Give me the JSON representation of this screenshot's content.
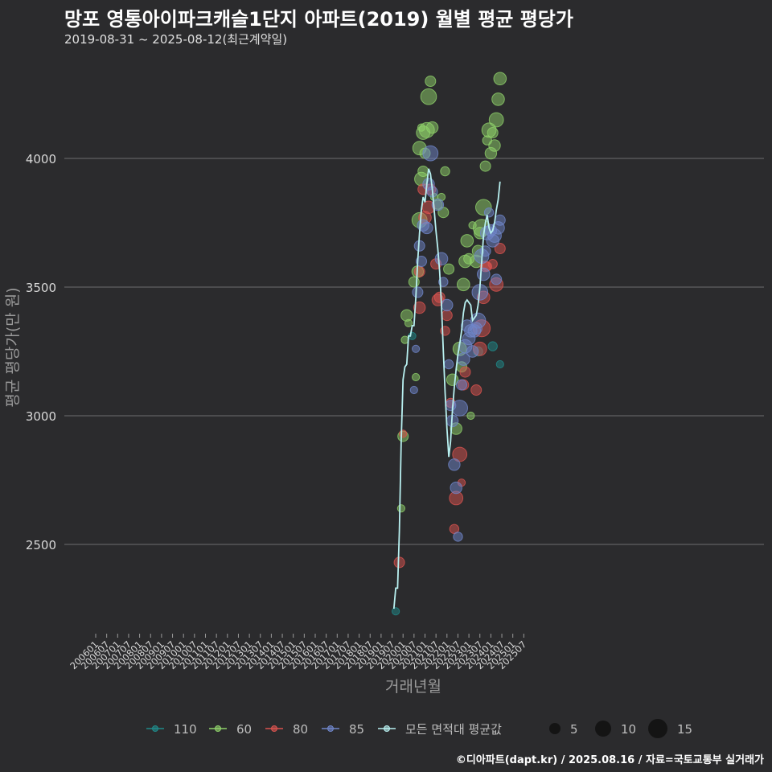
{
  "title": "망포 영통아이파크캐슬1단지 아파트(2019) 월별 평균 평당가",
  "subtitle": "2019-08-31 ~ 2025-08-12(최근계약일)",
  "source": "©디아파트(dapt.kr) / 2025.08.16 / 자료=국토교통부 실거래가",
  "colors": {
    "background": "#2b2b2d",
    "grid": "#6e6e6e",
    "110": "#1f8a8a",
    "60": "#8fd16a",
    "80": "#d9534f",
    "85": "#6f86c9",
    "avg": "#b8f0f0"
  },
  "chart_data": {
    "type": "scatter",
    "xlabel": "거래년월",
    "ylabel": "평균 평당가(만 원)",
    "ylim": [
      2150,
      4380
    ],
    "yticks": [
      2500,
      3000,
      3500,
      4000
    ],
    "x_tick_labels": [
      "200601",
      "200607",
      "200701",
      "200707",
      "200801",
      "200807",
      "200901",
      "200907",
      "201001",
      "201007",
      "201101",
      "201107",
      "201201",
      "201207",
      "201301",
      "201307",
      "201401",
      "201407",
      "201501",
      "201507",
      "201601",
      "201607",
      "201701",
      "201707",
      "201801",
      "201807",
      "201901",
      "201907",
      "202001",
      "202007",
      "202101",
      "202107",
      "202201",
      "202207",
      "202301",
      "202307",
      "202401",
      "202407",
      "202501",
      "202507"
    ],
    "grid": true,
    "legend": {
      "position": "bottom",
      "series_labels": [
        "110",
        "60",
        "80",
        "85",
        "모든 면적대 평균값"
      ],
      "size_labels": [
        "5",
        "10",
        "15"
      ]
    },
    "series": [
      {
        "name": "110",
        "color_key": "110",
        "points": [
          {
            "x": "2019-09",
            "y": 2240,
            "n": 1
          },
          {
            "x": "2020-06",
            "y": 3310,
            "n": 1
          },
          {
            "x": "2023-06",
            "y": 3250,
            "n": 2
          },
          {
            "x": "2024-02",
            "y": 3270,
            "n": 2
          },
          {
            "x": "2024-06",
            "y": 3200,
            "n": 1
          }
        ]
      },
      {
        "name": "60",
        "color_key": "60",
        "points": [
          {
            "x": "2019-12",
            "y": 2640,
            "n": 1
          },
          {
            "x": "2020-01",
            "y": 2920,
            "n": 3
          },
          {
            "x": "2020-02",
            "y": 3295,
            "n": 1
          },
          {
            "x": "2020-03",
            "y": 3390,
            "n": 4
          },
          {
            "x": "2020-04",
            "y": 3360,
            "n": 1
          },
          {
            "x": "2020-07",
            "y": 3520,
            "n": 3
          },
          {
            "x": "2020-08",
            "y": 3150,
            "n": 1
          },
          {
            "x": "2020-09",
            "y": 3560,
            "n": 4
          },
          {
            "x": "2020-10",
            "y": 3760,
            "n": 8
          },
          {
            "x": "2020-10",
            "y": 4040,
            "n": 6
          },
          {
            "x": "2020-11",
            "y": 3920,
            "n": 6
          },
          {
            "x": "2020-11",
            "y": 4120,
            "n": 1
          },
          {
            "x": "2020-12",
            "y": 3950,
            "n": 3
          },
          {
            "x": "2020-12",
            "y": 4100,
            "n": 6
          },
          {
            "x": "2021-01",
            "y": 4020,
            "n": 3
          },
          {
            "x": "2021-02",
            "y": 4110,
            "n": 8
          },
          {
            "x": "2021-03",
            "y": 4240,
            "n": 9
          },
          {
            "x": "2021-04",
            "y": 4300,
            "n": 3
          },
          {
            "x": "2021-05",
            "y": 4120,
            "n": 4
          },
          {
            "x": "2021-06",
            "y": 3850,
            "n": 1
          },
          {
            "x": "2021-08",
            "y": 3820,
            "n": 2
          },
          {
            "x": "2021-10",
            "y": 3850,
            "n": 1
          },
          {
            "x": "2021-11",
            "y": 3790,
            "n": 3
          },
          {
            "x": "2021-12",
            "y": 3950,
            "n": 2
          },
          {
            "x": "2022-02",
            "y": 3570,
            "n": 3
          },
          {
            "x": "2022-04",
            "y": 3140,
            "n": 4
          },
          {
            "x": "2022-08",
            "y": 3260,
            "n": 6
          },
          {
            "x": "2022-09",
            "y": 3190,
            "n": 3
          },
          {
            "x": "2022-10",
            "y": 3510,
            "n": 5
          },
          {
            "x": "2022-11",
            "y": 3600,
            "n": 5
          },
          {
            "x": "2022-12",
            "y": 3680,
            "n": 5
          },
          {
            "x": "2023-01",
            "y": 3610,
            "n": 3
          },
          {
            "x": "2023-03",
            "y": 3740,
            "n": 1
          },
          {
            "x": "2023-05",
            "y": 3600,
            "n": 5
          },
          {
            "x": "2023-06",
            "y": 3640,
            "n": 4
          },
          {
            "x": "2023-07",
            "y": 3710,
            "n": 4
          },
          {
            "x": "2023-08",
            "y": 3730,
            "n": 11
          },
          {
            "x": "2023-09",
            "y": 3810,
            "n": 9
          },
          {
            "x": "2023-10",
            "y": 3970,
            "n": 3
          },
          {
            "x": "2023-11",
            "y": 4070,
            "n": 2
          },
          {
            "x": "2023-12",
            "y": 4110,
            "n": 7
          },
          {
            "x": "2024-01",
            "y": 4020,
            "n": 4
          },
          {
            "x": "2024-02",
            "y": 4100,
            "n": 3
          },
          {
            "x": "2024-03",
            "y": 4050,
            "n": 4
          },
          {
            "x": "2024-04",
            "y": 4150,
            "n": 7
          },
          {
            "x": "2024-05",
            "y": 4230,
            "n": 5
          },
          {
            "x": "2024-06",
            "y": 4310,
            "n": 5
          },
          {
            "x": "2023-02",
            "y": 3000,
            "n": 1
          },
          {
            "x": "2022-06",
            "y": 2950,
            "n": 4
          }
        ]
      },
      {
        "name": "80",
        "color_key": "80",
        "points": [
          {
            "x": "2019-11",
            "y": 2430,
            "n": 3
          },
          {
            "x": "2020-01",
            "y": 2930,
            "n": 1
          },
          {
            "x": "2020-10",
            "y": 3560,
            "n": 3
          },
          {
            "x": "2020-10",
            "y": 3420,
            "n": 4
          },
          {
            "x": "2020-12",
            "y": 3880,
            "n": 3
          },
          {
            "x": "2021-01",
            "y": 3770,
            "n": 5
          },
          {
            "x": "2021-03",
            "y": 3810,
            "n": 5
          },
          {
            "x": "2021-04",
            "y": 3880,
            "n": 3
          },
          {
            "x": "2021-07",
            "y": 3590,
            "n": 3
          },
          {
            "x": "2021-08",
            "y": 3450,
            "n": 4
          },
          {
            "x": "2021-09",
            "y": 3460,
            "n": 3
          },
          {
            "x": "2021-12",
            "y": 3330,
            "n": 2
          },
          {
            "x": "2022-01",
            "y": 3390,
            "n": 3
          },
          {
            "x": "2022-03",
            "y": 3050,
            "n": 2
          },
          {
            "x": "2022-05",
            "y": 2560,
            "n": 2
          },
          {
            "x": "2022-06",
            "y": 2680,
            "n": 6
          },
          {
            "x": "2022-08",
            "y": 2850,
            "n": 7
          },
          {
            "x": "2022-09",
            "y": 2740,
            "n": 1
          },
          {
            "x": "2022-10",
            "y": 3120,
            "n": 3
          },
          {
            "x": "2022-11",
            "y": 3170,
            "n": 3
          },
          {
            "x": "2023-05",
            "y": 3100,
            "n": 3
          },
          {
            "x": "2023-07",
            "y": 3260,
            "n": 6
          },
          {
            "x": "2023-08",
            "y": 3340,
            "n": 11
          },
          {
            "x": "2023-09",
            "y": 3460,
            "n": 5
          },
          {
            "x": "2023-10",
            "y": 3580,
            "n": 3
          },
          {
            "x": "2023-11",
            "y": 3580,
            "n": 2
          },
          {
            "x": "2024-02",
            "y": 3590,
            "n": 2
          },
          {
            "x": "2024-04",
            "y": 3510,
            "n": 6
          },
          {
            "x": "2024-06",
            "y": 3650,
            "n": 3
          }
        ]
      },
      {
        "name": "85",
        "color_key": "85",
        "points": [
          {
            "x": "2020-07",
            "y": 3100,
            "n": 1
          },
          {
            "x": "2020-08",
            "y": 3260,
            "n": 1
          },
          {
            "x": "2020-09",
            "y": 3480,
            "n": 3
          },
          {
            "x": "2020-10",
            "y": 3660,
            "n": 3
          },
          {
            "x": "2020-11",
            "y": 3600,
            "n": 3
          },
          {
            "x": "2020-12",
            "y": 3740,
            "n": 4
          },
          {
            "x": "2021-02",
            "y": 3730,
            "n": 4
          },
          {
            "x": "2021-03",
            "y": 3900,
            "n": 4
          },
          {
            "x": "2021-04",
            "y": 4020,
            "n": 8
          },
          {
            "x": "2021-05",
            "y": 3870,
            "n": 3
          },
          {
            "x": "2021-08",
            "y": 3820,
            "n": 4
          },
          {
            "x": "2021-10",
            "y": 3610,
            "n": 5
          },
          {
            "x": "2021-11",
            "y": 3520,
            "n": 2
          },
          {
            "x": "2022-01",
            "y": 3430,
            "n": 4
          },
          {
            "x": "2022-02",
            "y": 3200,
            "n": 2
          },
          {
            "x": "2022-03",
            "y": 3040,
            "n": 3
          },
          {
            "x": "2022-04",
            "y": 2980,
            "n": 4
          },
          {
            "x": "2022-05",
            "y": 2810,
            "n": 4
          },
          {
            "x": "2022-06",
            "y": 2720,
            "n": 4
          },
          {
            "x": "2022-07",
            "y": 2530,
            "n": 2
          },
          {
            "x": "2022-08",
            "y": 3030,
            "n": 9
          },
          {
            "x": "2022-09",
            "y": 3120,
            "n": 3
          },
          {
            "x": "2022-10",
            "y": 3220,
            "n": 5
          },
          {
            "x": "2022-11",
            "y": 3270,
            "n": 6
          },
          {
            "x": "2022-12",
            "y": 3350,
            "n": 4
          },
          {
            "x": "2023-01",
            "y": 3300,
            "n": 5
          },
          {
            "x": "2023-02",
            "y": 3330,
            "n": 5
          },
          {
            "x": "2023-03",
            "y": 3250,
            "n": 4
          },
          {
            "x": "2023-04",
            "y": 3330,
            "n": 5
          },
          {
            "x": "2023-05",
            "y": 3340,
            "n": 4
          },
          {
            "x": "2023-06",
            "y": 3370,
            "n": 8
          },
          {
            "x": "2023-07",
            "y": 3480,
            "n": 9
          },
          {
            "x": "2023-08",
            "y": 3620,
            "n": 7
          },
          {
            "x": "2023-09",
            "y": 3550,
            "n": 5
          },
          {
            "x": "2023-10",
            "y": 3640,
            "n": 3
          },
          {
            "x": "2023-11",
            "y": 3710,
            "n": 6
          },
          {
            "x": "2023-12",
            "y": 3790,
            "n": 2
          },
          {
            "x": "2024-01",
            "y": 3720,
            "n": 4
          },
          {
            "x": "2024-02",
            "y": 3680,
            "n": 5
          },
          {
            "x": "2024-03",
            "y": 3700,
            "n": 6
          },
          {
            "x": "2024-04",
            "y": 3530,
            "n": 3
          },
          {
            "x": "2024-05",
            "y": 3730,
            "n": 5
          },
          {
            "x": "2024-06",
            "y": 3760,
            "n": 3
          }
        ]
      }
    ],
    "average_line": {
      "name": "모든 면적대 평균값",
      "color_key": "avg",
      "points": [
        {
          "x": "2019-08",
          "y": 2250
        },
        {
          "x": "2019-09",
          "y": 2330
        },
        {
          "x": "2019-10",
          "y": 2330
        },
        {
          "x": "2019-11",
          "y": 2550
        },
        {
          "x": "2019-12",
          "y": 2900
        },
        {
          "x": "2020-01",
          "y": 3140
        },
        {
          "x": "2020-02",
          "y": 3190
        },
        {
          "x": "2020-03",
          "y": 3200
        },
        {
          "x": "2020-04",
          "y": 3310
        },
        {
          "x": "2020-05",
          "y": 3310
        },
        {
          "x": "2020-06",
          "y": 3350
        },
        {
          "x": "2020-07",
          "y": 3350
        },
        {
          "x": "2020-08",
          "y": 3460
        },
        {
          "x": "2020-09",
          "y": 3600
        },
        {
          "x": "2020-10",
          "y": 3710
        },
        {
          "x": "2020-11",
          "y": 3800
        },
        {
          "x": "2020-12",
          "y": 3850
        },
        {
          "x": "2021-01",
          "y": 3830
        },
        {
          "x": "2021-02",
          "y": 3900
        },
        {
          "x": "2021-03",
          "y": 3960
        },
        {
          "x": "2021-04",
          "y": 3940
        },
        {
          "x": "2021-05",
          "y": 3880
        },
        {
          "x": "2021-06",
          "y": 3800
        },
        {
          "x": "2021-07",
          "y": 3720
        },
        {
          "x": "2021-08",
          "y": 3650
        },
        {
          "x": "2021-09",
          "y": 3560
        },
        {
          "x": "2021-10",
          "y": 3430
        },
        {
          "x": "2021-11",
          "y": 3250
        },
        {
          "x": "2021-12",
          "y": 3090
        },
        {
          "x": "2022-01",
          "y": 2950
        },
        {
          "x": "2022-02",
          "y": 2840
        },
        {
          "x": "2022-03",
          "y": 2900
        },
        {
          "x": "2022-04",
          "y": 3020
        },
        {
          "x": "2022-05",
          "y": 3110
        },
        {
          "x": "2022-06",
          "y": 3180
        },
        {
          "x": "2022-07",
          "y": 3240
        },
        {
          "x": "2022-08",
          "y": 3280
        },
        {
          "x": "2022-09",
          "y": 3330
        },
        {
          "x": "2022-10",
          "y": 3400
        },
        {
          "x": "2022-11",
          "y": 3440
        },
        {
          "x": "2022-12",
          "y": 3450
        },
        {
          "x": "2023-01",
          "y": 3440
        },
        {
          "x": "2023-02",
          "y": 3430
        },
        {
          "x": "2023-03",
          "y": 3370
        },
        {
          "x": "2023-04",
          "y": 3380
        },
        {
          "x": "2023-05",
          "y": 3390
        },
        {
          "x": "2023-06",
          "y": 3430
        },
        {
          "x": "2023-07",
          "y": 3500
        },
        {
          "x": "2023-08",
          "y": 3600
        },
        {
          "x": "2023-09",
          "y": 3700
        },
        {
          "x": "2023-10",
          "y": 3750
        },
        {
          "x": "2023-11",
          "y": 3780
        },
        {
          "x": "2023-12",
          "y": 3730
        },
        {
          "x": "2024-01",
          "y": 3710
        },
        {
          "x": "2024-02",
          "y": 3720
        },
        {
          "x": "2024-03",
          "y": 3750
        },
        {
          "x": "2024-04",
          "y": 3800
        },
        {
          "x": "2024-05",
          "y": 3840
        },
        {
          "x": "2024-06",
          "y": 3910
        }
      ]
    }
  }
}
